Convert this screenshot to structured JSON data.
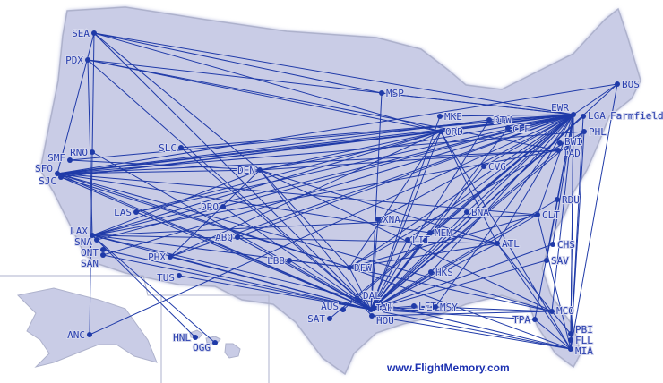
{
  "credit": "www.FlightMemory.com",
  "extra_label": "Farmfield, ",
  "colors": {
    "land": "#c9cce6",
    "route": "#1f3aa8",
    "border": "#aeb2cc",
    "water": "#ffffff"
  },
  "airports": [
    "SEA",
    "PDX",
    "RNO",
    "SMF",
    "SFO",
    "SJC",
    "SLC",
    "DEN",
    "LAS",
    "DRO",
    "ABQ",
    "LAX",
    "SNA",
    "ONT",
    "SAN",
    "PHX",
    "TUS",
    "ANC",
    "HNL",
    "OGG",
    "MSP",
    "MKE",
    "ORD",
    "DTW",
    "CLE",
    "EWR",
    "LGA",
    "PHL",
    "BWI",
    "IAD",
    "CVG",
    "BNA",
    "XNA",
    "MEM",
    "LIT",
    "LBB",
    "DFW",
    "DAL",
    "AUS",
    "IAH",
    "HOU",
    "SAT",
    "LFT",
    "MSY",
    "HKS",
    "ATL",
    "CLT",
    "RDU",
    "CHS",
    "SAV",
    "MCO",
    "TPA",
    "PBI",
    "FLL",
    "MIA",
    "BOS"
  ],
  "routes": [
    [
      "EWR",
      "SEA"
    ],
    [
      "EWR",
      "PDX"
    ],
    [
      "EWR",
      "SFO"
    ],
    [
      "EWR",
      "SJC"
    ],
    [
      "EWR",
      "SMF"
    ],
    [
      "EWR",
      "LAX"
    ],
    [
      "EWR",
      "SNA"
    ],
    [
      "EWR",
      "SAN"
    ],
    [
      "EWR",
      "LAS"
    ],
    [
      "EWR",
      "PHX"
    ],
    [
      "EWR",
      "DEN"
    ],
    [
      "EWR",
      "SLC"
    ],
    [
      "EWR",
      "ABQ"
    ],
    [
      "EWR",
      "IAH"
    ],
    [
      "EWR",
      "DFW"
    ],
    [
      "EWR",
      "AUS"
    ],
    [
      "EWR",
      "SAT"
    ],
    [
      "EWR",
      "MSY"
    ],
    [
      "EWR",
      "ATL"
    ],
    [
      "EWR",
      "MCO"
    ],
    [
      "EWR",
      "TPA"
    ],
    [
      "EWR",
      "MIA"
    ],
    [
      "EWR",
      "FLL"
    ],
    [
      "EWR",
      "PBI"
    ],
    [
      "EWR",
      "ORD"
    ],
    [
      "EWR",
      "DTW"
    ],
    [
      "EWR",
      "MSP"
    ],
    [
      "EWR",
      "MKE"
    ],
    [
      "EWR",
      "CLE"
    ],
    [
      "EWR",
      "CVG"
    ],
    [
      "EWR",
      "BNA"
    ],
    [
      "EWR",
      "MEM"
    ],
    [
      "EWR",
      "CHS"
    ],
    [
      "EWR",
      "RDU"
    ],
    [
      "EWR",
      "CLT"
    ],
    [
      "EWR",
      "SAV"
    ],
    [
      "EWR",
      "BOS"
    ],
    [
      "EWR",
      "XNA"
    ],
    [
      "EWR",
      "LIT"
    ],
    [
      "EWR",
      "HKS"
    ],
    [
      "EWR",
      "ANC"
    ],
    [
      "IAH",
      "SEA"
    ],
    [
      "IAH",
      "PDX"
    ],
    [
      "IAH",
      "SFO"
    ],
    [
      "IAH",
      "LAX"
    ],
    [
      "IAH",
      "SAN"
    ],
    [
      "IAH",
      "ONT"
    ],
    [
      "IAH",
      "PHX"
    ],
    [
      "IAH",
      "TUS"
    ],
    [
      "IAH",
      "LAS"
    ],
    [
      "IAH",
      "DEN"
    ],
    [
      "IAH",
      "SLC"
    ],
    [
      "IAH",
      "ABQ"
    ],
    [
      "IAH",
      "DRO"
    ],
    [
      "IAH",
      "MSP"
    ],
    [
      "IAH",
      "ORD"
    ],
    [
      "IAH",
      "MKE"
    ],
    [
      "IAH",
      "DTW"
    ],
    [
      "IAH",
      "CLE"
    ],
    [
      "IAH",
      "CVG"
    ],
    [
      "IAH",
      "BNA"
    ],
    [
      "IAH",
      "ATL"
    ],
    [
      "IAH",
      "CLT"
    ],
    [
      "IAH",
      "RDU"
    ],
    [
      "IAH",
      "IAD"
    ],
    [
      "IAH",
      "PHL"
    ],
    [
      "IAH",
      "LGA"
    ],
    [
      "IAH",
      "BOS"
    ],
    [
      "IAH",
      "MCO"
    ],
    [
      "IAH",
      "TPA"
    ],
    [
      "IAH",
      "MIA"
    ],
    [
      "IAH",
      "MSY"
    ],
    [
      "IAH",
      "LFT"
    ],
    [
      "IAH",
      "HKS"
    ],
    [
      "IAH",
      "LIT"
    ],
    [
      "IAH",
      "MEM"
    ],
    [
      "IAH",
      "XNA"
    ],
    [
      "IAH",
      "LBB"
    ],
    [
      "IAH",
      "DFW"
    ],
    [
      "IAH",
      "CHS"
    ],
    [
      "IAH",
      "SAV"
    ],
    [
      "IAH",
      "RNO"
    ],
    [
      "IAH",
      "SJC"
    ],
    [
      "SFO",
      "DEN"
    ],
    [
      "SFO",
      "ORD"
    ],
    [
      "SFO",
      "IAD"
    ],
    [
      "SFO",
      "PHL"
    ],
    [
      "SFO",
      "BOS"
    ],
    [
      "SFO",
      "DFW"
    ],
    [
      "SFO",
      "ATL"
    ],
    [
      "SFO",
      "DTW"
    ],
    [
      "SFO",
      "CLT"
    ],
    [
      "SFO",
      "MCO"
    ],
    [
      "SFO",
      "SEA"
    ],
    [
      "SJC",
      "DFW"
    ],
    [
      "SJC",
      "ORD"
    ],
    [
      "SMF",
      "DEN"
    ],
    [
      "DEN",
      "ORD"
    ],
    [
      "DEN",
      "SEA"
    ],
    [
      "DEN",
      "LAX"
    ],
    [
      "DEN",
      "PHX"
    ],
    [
      "DEN",
      "DFW"
    ],
    [
      "DEN",
      "ATL"
    ],
    [
      "DEN",
      "MCO"
    ],
    [
      "DEN",
      "IAD"
    ],
    [
      "ORD",
      "LAX"
    ],
    [
      "ORD",
      "SEA"
    ],
    [
      "ORD",
      "PDX"
    ],
    [
      "ORD",
      "PHX"
    ],
    [
      "ORD",
      "LAS"
    ],
    [
      "ORD",
      "DFW"
    ],
    [
      "ORD",
      "MIA"
    ],
    [
      "ORD",
      "ATL"
    ],
    [
      "SEA",
      "MSP"
    ],
    [
      "SEA",
      "ANC"
    ],
    [
      "PDX",
      "IAD"
    ],
    [
      "PDX",
      "LAX"
    ],
    [
      "LAX",
      "HNL"
    ],
    [
      "LAX",
      "OGG"
    ],
    [
      "LAX",
      "DFW"
    ],
    [
      "LAX",
      "ATL"
    ],
    [
      "LAX",
      "IAD"
    ],
    [
      "LAX",
      "MIA"
    ],
    [
      "LAX",
      "CLT"
    ],
    [
      "DFW",
      "MIA"
    ],
    [
      "DFW",
      "ATL"
    ],
    [
      "DFW",
      "CLT"
    ],
    [
      "DFW",
      "MCO"
    ],
    [
      "DFW",
      "PHL"
    ],
    [
      "DFW",
      "LBB"
    ],
    [
      "DAL",
      "HOU"
    ],
    [
      "ATL",
      "MCO"
    ],
    [
      "ATL",
      "MIA"
    ],
    [
      "CLT",
      "MIA"
    ],
    [
      "BOS",
      "MIA"
    ],
    [
      "PHL",
      "MIA"
    ],
    [
      "LGA",
      "MIA"
    ],
    [
      "TPA",
      "MIA"
    ],
    [
      "MCO",
      "PBI"
    ],
    [
      "MSY",
      "MCO"
    ],
    [
      "HOU",
      "MCO"
    ],
    [
      "HOU",
      "MIA"
    ],
    [
      "LFT",
      "MSY"
    ]
  ]
}
